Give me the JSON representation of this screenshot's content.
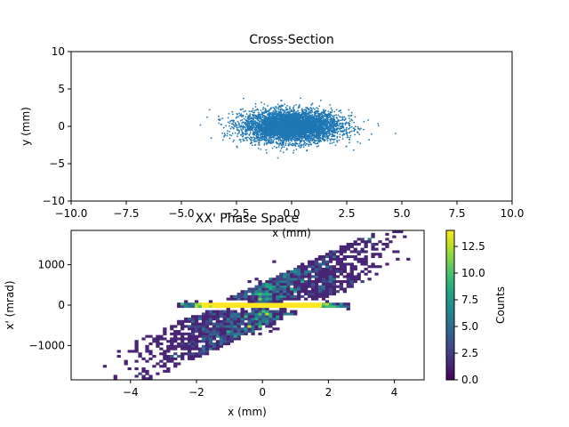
{
  "chart_data": [
    {
      "type": "scatter",
      "title": "Cross-Section",
      "xlabel": "x (mm)",
      "ylabel": "y (mm)",
      "xlim": [
        -10,
        10
      ],
      "ylim": [
        -10,
        10
      ],
      "xticks": [
        "−10.0",
        "−7.5",
        "−5.0",
        "−2.5",
        "0.0",
        "2.5",
        "5.0",
        "7.5",
        "10.0"
      ],
      "xtick_values": [
        -10,
        -7.5,
        -5,
        -2.5,
        0,
        2.5,
        5,
        7.5,
        10
      ],
      "yticks": [
        "10",
        "5",
        "0",
        "−5",
        "−10"
      ],
      "ytick_values": [
        10,
        5,
        0,
        -5,
        -10
      ],
      "grid": false,
      "color": "#1f77b4",
      "distribution": {
        "center": [
          0,
          0
        ],
        "sigma_x": 1.1,
        "sigma_y": 1.05,
        "x_extent": [
          -5.8,
          4.9
        ],
        "y_extent": [
          -4.5,
          5.5
        ]
      }
    },
    {
      "type": "heatmap",
      "title": "XX' Phase Space",
      "xlabel": "x (mm)",
      "ylabel": "x' (mrad)",
      "xlim": [
        -5.8,
        4.9
      ],
      "ylim": [
        -1850,
        1850
      ],
      "xticks": [
        "−4",
        "−2",
        "0",
        "2",
        "4"
      ],
      "xtick_values": [
        -4,
        -2,
        0,
        2,
        4
      ],
      "yticks": [
        "1000",
        "0",
        "−1000"
      ],
      "ytick_values": [
        1000,
        0,
        -1000
      ],
      "colorbar": {
        "label": "Counts",
        "range": [
          0,
          14
        ],
        "ticks": [
          "12.5",
          "10.0",
          "7.5",
          "5.0",
          "2.5",
          "0.0"
        ],
        "tick_values": [
          12.5,
          10,
          7.5,
          5,
          2.5,
          0
        ],
        "colormap": "viridis"
      },
      "structure": {
        "core_band": {
          "x": [
            -2.5,
            2.5
          ],
          "xp": [
            -60,
            60
          ]
        },
        "diagonal_band_slope_mrad_per_mm": 370,
        "diagonal_band_width_mrad": 500
      }
    }
  ]
}
